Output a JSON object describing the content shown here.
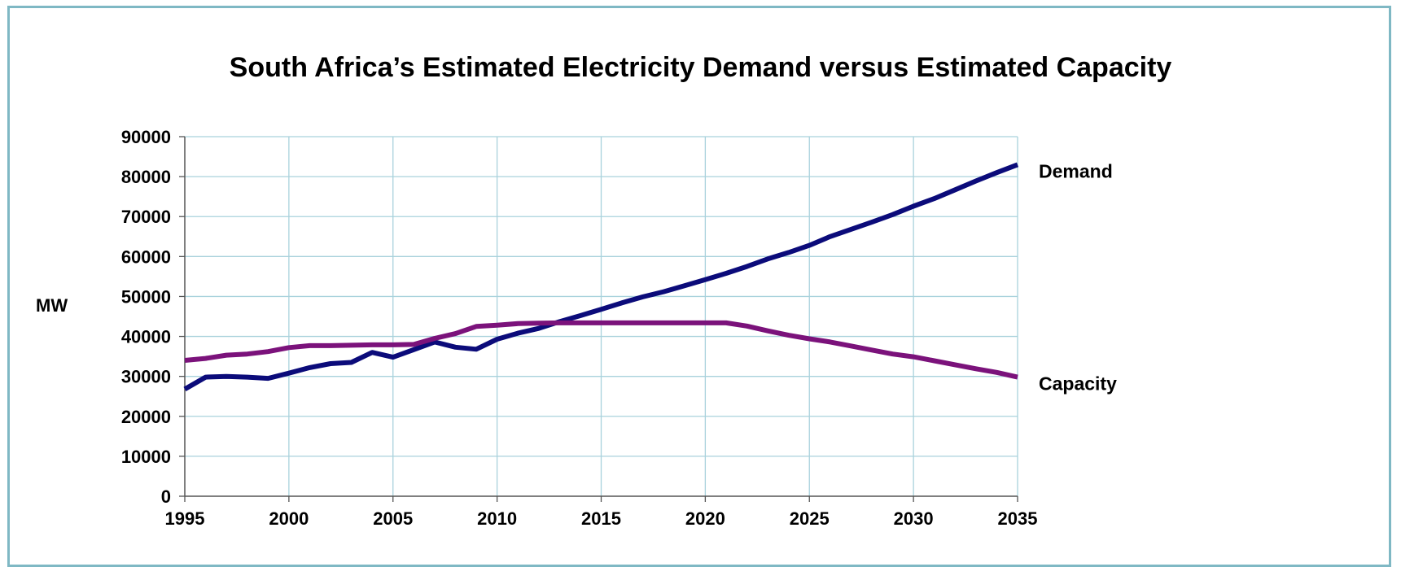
{
  "chart_data": {
    "type": "line",
    "title": "South Africa’s Estimated Electricity Demand versus Estimated Capacity",
    "ylabel": "MW",
    "xlabel": "",
    "xlim": [
      1995,
      2035
    ],
    "ylim": [
      0,
      90000
    ],
    "x_ticks": [
      "1995",
      "2000",
      "2005",
      "2010",
      "2015",
      "2020",
      "2025",
      "2030",
      "2035"
    ],
    "y_ticks": [
      "0",
      "10000",
      "20000",
      "30000",
      "40000",
      "50000",
      "60000",
      "70000",
      "80000",
      "90000"
    ],
    "grid": true,
    "legend": "labels at line ends (right)",
    "series": [
      {
        "name": "Demand",
        "color": "#0b0b7a",
        "x": [
          1995,
          1996,
          1997,
          1998,
          1999,
          2000,
          2001,
          2002,
          2003,
          2004,
          2005,
          2006,
          2007,
          2008,
          2009,
          2010,
          2011,
          2012,
          2013,
          2014,
          2015,
          2016,
          2017,
          2018,
          2019,
          2020,
          2021,
          2022,
          2023,
          2024,
          2025,
          2026,
          2027,
          2028,
          2029,
          2030,
          2031,
          2032,
          2033,
          2034,
          2035
        ],
        "y": [
          26800,
          29800,
          30000,
          29800,
          29500,
          30800,
          32200,
          33200,
          33500,
          36000,
          34800,
          36700,
          38600,
          37300,
          36800,
          39300,
          40800,
          42000,
          43700,
          45200,
          46800,
          48400,
          49900,
          51200,
          52700,
          54200,
          55800,
          57500,
          59400,
          61000,
          62800,
          65000,
          66800,
          68600,
          70500,
          72600,
          74500,
          76700,
          78900,
          81000,
          83000
        ]
      },
      {
        "name": "Capacity",
        "color": "#7b127b",
        "x": [
          1995,
          1996,
          1997,
          1998,
          1999,
          2000,
          2001,
          2002,
          2003,
          2004,
          2005,
          2006,
          2007,
          2008,
          2009,
          2010,
          2011,
          2012,
          2013,
          2014,
          2015,
          2016,
          2017,
          2018,
          2019,
          2020,
          2021,
          2022,
          2023,
          2024,
          2025,
          2026,
          2027,
          2028,
          2029,
          2030,
          2031,
          2032,
          2033,
          2034,
          2035
        ],
        "y": [
          34000,
          34500,
          35300,
          35600,
          36200,
          37200,
          37700,
          37700,
          37800,
          37900,
          37900,
          38000,
          39500,
          40700,
          42500,
          42800,
          43200,
          43300,
          43400,
          43400,
          43400,
          43400,
          43400,
          43400,
          43400,
          43400,
          43400,
          42600,
          41400,
          40300,
          39400,
          38600,
          37600,
          36600,
          35600,
          34900,
          33900,
          32900,
          31900,
          31000,
          29800
        ]
      }
    ]
  },
  "colors": {
    "frame": "#7fb8c4",
    "grid": "#a9d2dc",
    "axis": "#555555"
  }
}
